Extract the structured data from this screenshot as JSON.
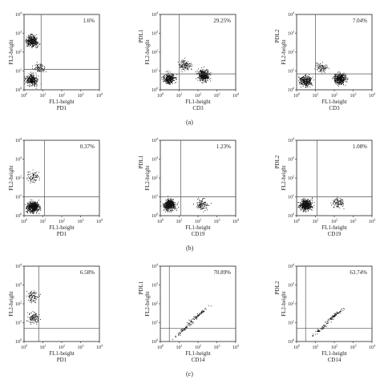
{
  "figure": {
    "axis": {
      "x_title": "FL1-height",
      "y_title": "FL2-height",
      "ticks": [
        "10^0",
        "10^1",
        "10^2",
        "10^3",
        "10^4"
      ]
    },
    "panel_labels": [
      "(a)",
      "(b)",
      "(c)"
    ]
  },
  "chart_data": [
    {
      "type": "scatter",
      "row": "a",
      "col": 1,
      "xlabel": "FL1-height",
      "xmarker": "PD1",
      "ylabel": "FL2-height",
      "ymarker": "",
      "annotation": "1.6%",
      "scale": "log",
      "xlim": [
        1,
        10000
      ],
      "ylim": [
        1,
        10000
      ],
      "gate": {
        "x": 8,
        "y": 12
      },
      "populations": [
        {
          "cx": 2.5,
          "cy": 400,
          "n": 360
        },
        {
          "cx": 2.5,
          "cy": 3.5,
          "n": 300
        },
        {
          "cx": 6,
          "cy": 15,
          "n": 90
        }
      ]
    },
    {
      "type": "scatter",
      "row": "a",
      "col": 2,
      "xlabel": "FL1-height",
      "xmarker": "CD3",
      "ylabel": "FL2-height",
      "ymarker": "PDL1",
      "annotation": "29.25%",
      "scale": "log",
      "xlim": [
        1,
        10000
      ],
      "ylim": [
        1,
        10000
      ],
      "gate": {
        "x": 10,
        "y": 7
      },
      "populations": [
        {
          "cx": 3,
          "cy": 4,
          "n": 330
        },
        {
          "cx": 200,
          "cy": 6,
          "n": 420
        },
        {
          "cx": 20,
          "cy": 20,
          "n": 120
        }
      ]
    },
    {
      "type": "scatter",
      "row": "a",
      "col": 3,
      "xlabel": "FL1-height",
      "xmarker": "CD3",
      "ylabel": "FL2-height",
      "ymarker": "PDL2",
      "annotation": "7.04%",
      "scale": "log",
      "xlim": [
        1,
        10000
      ],
      "ylim": [
        1,
        10000
      ],
      "gate": {
        "x": 10,
        "y": 7
      },
      "populations": [
        {
          "cx": 3,
          "cy": 3,
          "n": 300
        },
        {
          "cx": 200,
          "cy": 4,
          "n": 430
        },
        {
          "cx": 20,
          "cy": 15,
          "n": 90
        }
      ]
    },
    {
      "type": "scatter",
      "row": "b",
      "col": 1,
      "xlabel": "FL1-height",
      "xmarker": "PD1",
      "ylabel": "FL2-height",
      "ymarker": "",
      "annotation": "0.37%",
      "scale": "log",
      "xlim": [
        1,
        10000
      ],
      "ylim": [
        1,
        10000
      ],
      "gate": {
        "x": 12,
        "y": 10
      },
      "populations": [
        {
          "cx": 3,
          "cy": 3,
          "n": 560
        },
        {
          "cx": 3,
          "cy": 120,
          "n": 80
        }
      ]
    },
    {
      "type": "scatter",
      "row": "b",
      "col": 2,
      "xlabel": "FL1-height",
      "xmarker": "CD19",
      "ylabel": "FL2-height",
      "ymarker": "PDL1",
      "annotation": "1.23%",
      "scale": "log",
      "xlim": [
        1,
        10000
      ],
      "ylim": [
        1,
        10000
      ],
      "gate": {
        "x": 12,
        "y": 10
      },
      "populations": [
        {
          "cx": 3,
          "cy": 4,
          "n": 520
        },
        {
          "cx": 150,
          "cy": 4,
          "n": 110
        }
      ]
    },
    {
      "type": "scatter",
      "row": "b",
      "col": 3,
      "xlabel": "FL1-height",
      "xmarker": "CD19",
      "ylabel": "FL2-height",
      "ymarker": "PDL2",
      "annotation": "1.08%",
      "scale": "log",
      "xlim": [
        1,
        10000
      ],
      "ylim": [
        1,
        10000
      ],
      "gate": {
        "x": 12,
        "y": 10
      },
      "populations": [
        {
          "cx": 3,
          "cy": 4,
          "n": 500
        },
        {
          "cx": 150,
          "cy": 5,
          "n": 100
        }
      ]
    },
    {
      "type": "scatter",
      "row": "c",
      "col": 1,
      "xlabel": "FL1-height",
      "xmarker": "PD1",
      "ylabel": "FL2-height",
      "ymarker": "",
      "annotation": "6.58%",
      "scale": "log",
      "xlim": [
        1,
        10000
      ],
      "ylim": [
        1,
        10000
      ],
      "gate": {
        "x": 6,
        "y": 5
      },
      "populations": [
        {
          "cx": 3,
          "cy": 250,
          "n": 90
        },
        {
          "cx": 3,
          "cy": 20,
          "n": 110
        }
      ]
    },
    {
      "type": "scatter",
      "row": "c",
      "col": 2,
      "xlabel": "FL1-height",
      "xmarker": "CD14",
      "ylabel": "FL2-height",
      "ymarker": "PDL1",
      "annotation": "70.89%",
      "scale": "log",
      "xlim": [
        1,
        10000
      ],
      "ylim": [
        1,
        10000
      ],
      "gate": {
        "x": 3,
        "y": 5
      },
      "populations": [
        {
          "cx": 100,
          "cy": 25,
          "n": 80,
          "diagonal": true
        },
        {
          "cx": 20,
          "cy": 5,
          "n": 60,
          "diagonal": true
        }
      ]
    },
    {
      "type": "scatter",
      "row": "c",
      "col": 3,
      "xlabel": "FL1-height",
      "xmarker": "CD14",
      "ylabel": "FL2-height",
      "ymarker": "PDL2",
      "annotation": "63.74%",
      "scale": "log",
      "xlim": [
        1,
        10000
      ],
      "ylim": [
        1,
        10000
      ],
      "gate": {
        "x": 3,
        "y": 5
      },
      "populations": [
        {
          "cx": 100,
          "cy": 25,
          "n": 80,
          "diagonal": true
        },
        {
          "cx": 20,
          "cy": 5,
          "n": 60,
          "diagonal": true
        }
      ]
    }
  ]
}
